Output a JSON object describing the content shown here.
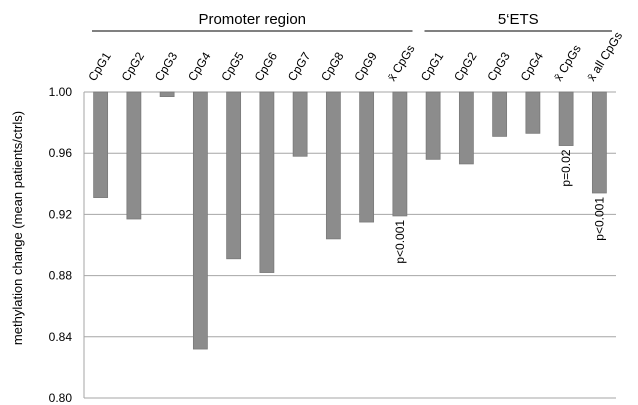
{
  "chart_data": {
    "type": "bar",
    "y_label": "methylation change (mean patients/ctrls)",
    "groups": [
      {
        "name": "Promoter region",
        "count": 10
      },
      {
        "name": "5‘ETS",
        "count": 6
      }
    ],
    "categories": [
      "CpG1",
      "CpG2",
      "CpG3",
      "CpG4",
      "CpG5",
      "CpG6",
      "CpG7",
      "CpG8",
      "CpG9",
      "x̄ CpGs",
      "CpG1",
      "CpG2",
      "CpG3",
      "CpG4",
      "x̄ CpGs",
      "x̄ all CpGs"
    ],
    "values": [
      0.931,
      0.917,
      0.997,
      0.832,
      0.891,
      0.882,
      0.958,
      0.904,
      0.915,
      0.919,
      0.956,
      0.953,
      0.971,
      0.973,
      0.965,
      0.934
    ],
    "annotations": [
      null,
      null,
      null,
      null,
      null,
      null,
      null,
      null,
      null,
      "p<0.001",
      null,
      null,
      null,
      null,
      "p=0.02",
      "p<0.001"
    ],
    "color": "#8c8c8c",
    "ylim": [
      0.8,
      1.0
    ],
    "yticks": [
      {
        "value": 0.8,
        "label": "0.80"
      },
      {
        "value": 0.84,
        "label": "0.84"
      },
      {
        "value": 0.88,
        "label": "0.88"
      },
      {
        "value": 0.92,
        "label": "0.92"
      },
      {
        "value": 0.96,
        "label": "0.96"
      },
      {
        "value": 1.0,
        "label": "1.00"
      }
    ],
    "grid": true
  }
}
